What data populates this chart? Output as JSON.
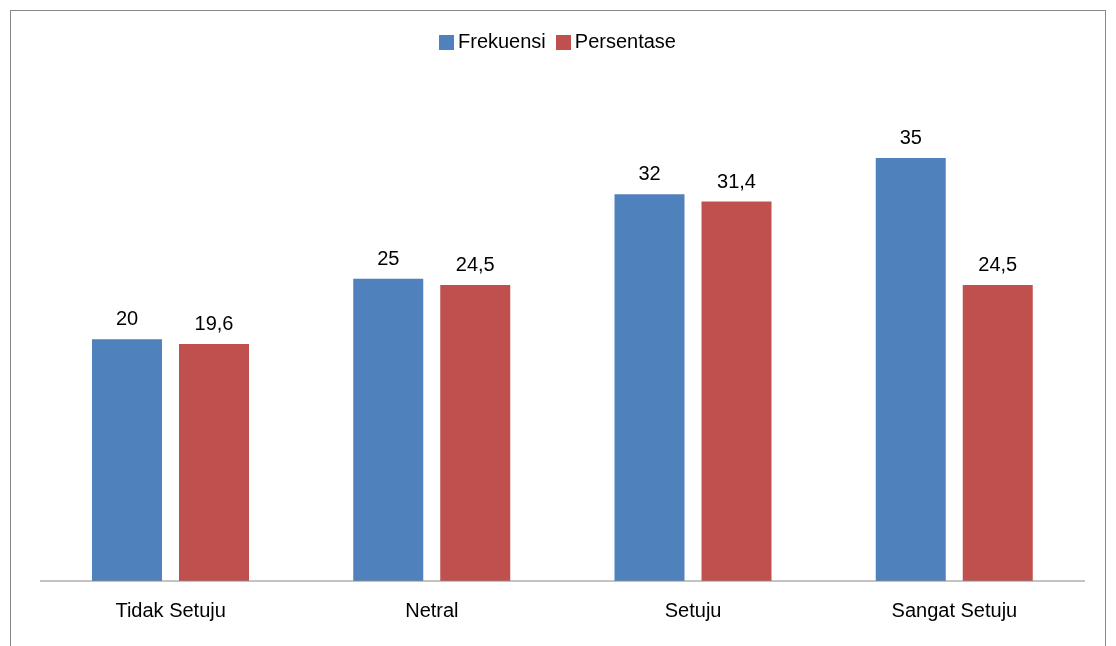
{
  "chart_data": {
    "type": "bar",
    "categories": [
      "Tidak Setuju",
      "Netral",
      "Setuju",
      "Sangat Setuju"
    ],
    "series": [
      {
        "name": "Frekuensi",
        "color": "#4f81bd",
        "values": [
          20,
          25,
          32,
          35
        ],
        "value_labels": [
          "20",
          "25",
          "32",
          "35"
        ]
      },
      {
        "name": "Persentase",
        "color": "#c0504d",
        "values": [
          19.6,
          24.5,
          31.4,
          24.5
        ],
        "value_labels": [
          "19,6",
          "24,5",
          "31,4",
          "24,5"
        ]
      }
    ],
    "legend": "top",
    "grid": false
  }
}
